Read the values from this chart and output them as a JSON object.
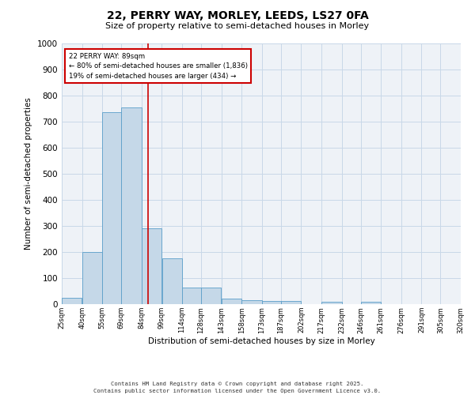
{
  "title_line1": "22, PERRY WAY, MORLEY, LEEDS, LS27 0FA",
  "title_line2": "Size of property relative to semi-detached houses in Morley",
  "xlabel": "Distribution of semi-detached houses by size in Morley",
  "ylabel": "Number of semi-detached properties",
  "footer_line1": "Contains HM Land Registry data © Crown copyright and database right 2025.",
  "footer_line2": "Contains public sector information licensed under the Open Government Licence v3.0.",
  "bins": [
    25,
    40,
    55,
    69,
    84,
    99,
    114,
    128,
    143,
    158,
    173,
    187,
    202,
    217,
    232,
    246,
    261,
    276,
    291,
    305,
    320
  ],
  "bin_labels": [
    "25sqm",
    "40sqm",
    "55sqm",
    "69sqm",
    "84sqm",
    "99sqm",
    "114sqm",
    "128sqm",
    "143sqm",
    "158sqm",
    "173sqm",
    "187sqm",
    "202sqm",
    "217sqm",
    "232sqm",
    "246sqm",
    "261sqm",
    "276sqm",
    "291sqm",
    "305sqm",
    "320sqm"
  ],
  "values": [
    25,
    200,
    735,
    755,
    290,
    175,
    65,
    65,
    20,
    15,
    12,
    12,
    0,
    10,
    0,
    8,
    0,
    0,
    0,
    0
  ],
  "bar_color": "#c5d8e8",
  "bar_edge_color": "#5a9ec9",
  "property_line_x": 89,
  "property_line_color": "#cc0000",
  "annotation_text": "22 PERRY WAY: 89sqm\n← 80% of semi-detached houses are smaller (1,836)\n19% of semi-detached houses are larger (434) →",
  "annotation_box_color": "#cc0000",
  "ylim": [
    0,
    1000
  ],
  "yticks": [
    0,
    100,
    200,
    300,
    400,
    500,
    600,
    700,
    800,
    900,
    1000
  ],
  "grid_color": "#c8d8e8",
  "background_color": "#eef2f7"
}
